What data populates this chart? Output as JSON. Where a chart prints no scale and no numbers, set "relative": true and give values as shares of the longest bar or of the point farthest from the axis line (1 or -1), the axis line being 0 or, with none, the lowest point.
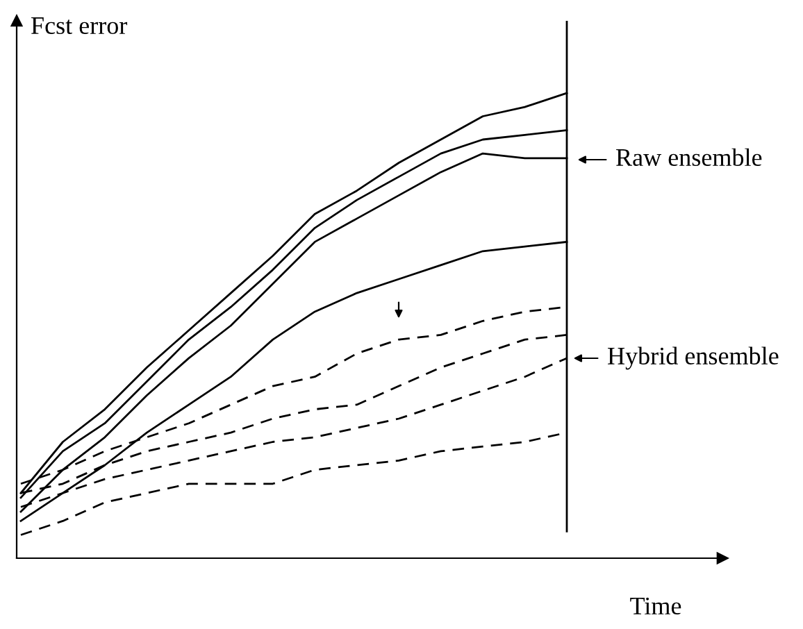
{
  "chart_data": {
    "type": "line",
    "relative": true,
    "xlabel": "Time",
    "ylabel": "Fcst error",
    "categories": [
      null,
      null,
      null,
      null,
      null,
      null,
      null,
      null,
      null,
      null,
      null,
      null,
      null,
      null
    ],
    "series": [
      {
        "color": "#000000",
        "line_style": "solid",
        "values": [
          0.14,
          0.25,
          0.32,
          0.41,
          0.49,
          0.57,
          0.65,
          0.74,
          0.79,
          0.85,
          0.9,
          0.95,
          0.97,
          1.0
        ]
      },
      {
        "color": "#000000",
        "line_style": "solid",
        "values": [
          0.13,
          0.23,
          0.29,
          0.38,
          0.47,
          0.54,
          0.62,
          0.71,
          0.77,
          0.82,
          0.87,
          0.9,
          0.91,
          0.92
        ]
      },
      {
        "color": "#000000",
        "line_style": "solid",
        "values": [
          0.1,
          0.19,
          0.26,
          0.35,
          0.43,
          0.5,
          0.59,
          0.68,
          0.73,
          0.78,
          0.83,
          0.87,
          0.86,
          0.86
        ]
      },
      {
        "color": "#000000",
        "line_style": "solid",
        "values": [
          0.08,
          0.14,
          0.2,
          0.27,
          0.33,
          0.39,
          0.47,
          0.53,
          0.57,
          0.6,
          0.63,
          0.66,
          0.67,
          0.68
        ]
      },
      {
        "color": "#000000",
        "line_style": "dashed",
        "values": [
          0.16,
          0.19,
          0.23,
          0.26,
          0.29,
          0.33,
          0.37,
          0.39,
          0.44,
          0.47,
          0.48,
          0.51,
          0.53,
          0.54
        ]
      },
      {
        "color": "#000000",
        "line_style": "dashed",
        "values": [
          0.14,
          0.16,
          0.2,
          0.23,
          0.25,
          0.27,
          0.3,
          0.32,
          0.33,
          0.37,
          0.41,
          0.44,
          0.47,
          0.48
        ]
      },
      {
        "color": "#000000",
        "line_style": "dashed",
        "values": [
          0.11,
          0.14,
          0.17,
          0.19,
          0.21,
          0.23,
          0.25,
          0.26,
          0.28,
          0.3,
          0.33,
          0.36,
          0.39,
          0.43
        ]
      },
      {
        "color": "#000000",
        "line_style": "dashed",
        "values": [
          0.05,
          0.08,
          0.12,
          0.14,
          0.16,
          0.16,
          0.16,
          0.19,
          0.2,
          0.21,
          0.23,
          0.24,
          0.25,
          0.27
        ]
      }
    ],
    "annotations": [
      "Raw ensemble",
      "Hybrid ensemble"
    ],
    "grid": false
  }
}
